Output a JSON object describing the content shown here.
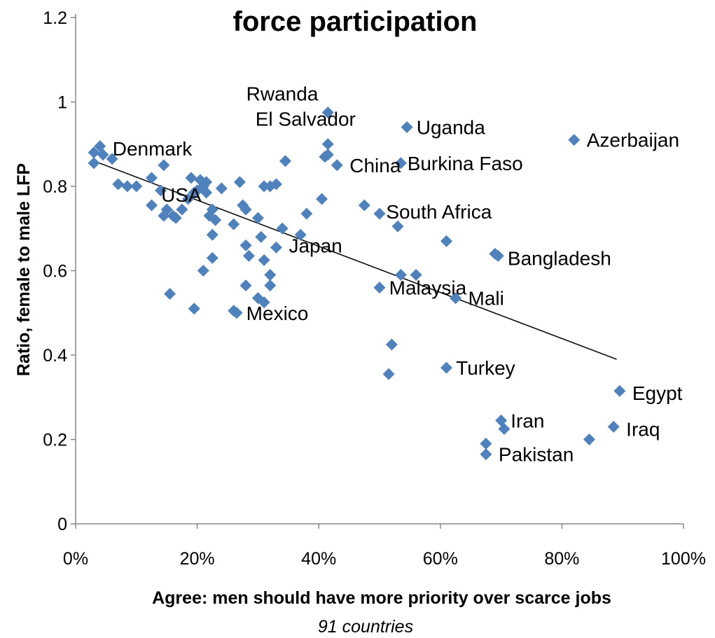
{
  "chart_data": {
    "type": "scatter",
    "title": "force participation",
    "xlabel": "Agree: men should have more priority over scarce jobs",
    "ylabel": "Ratio, female to male LFP",
    "subtitle": "91 countries",
    "xlim": [
      0,
      1
    ],
    "ylim": [
      0,
      1.2
    ],
    "x_ticks": [
      {
        "value": 0,
        "label": "0%"
      },
      {
        "value": 0.2,
        "label": "20%"
      },
      {
        "value": 0.4,
        "label": "40%"
      },
      {
        "value": 0.6,
        "label": "60%"
      },
      {
        "value": 0.8,
        "label": "80%"
      },
      {
        "value": 1.0,
        "label": "100%"
      }
    ],
    "y_ticks": [
      {
        "value": 0,
        "label": "0"
      },
      {
        "value": 0.2,
        "label": "0.2"
      },
      {
        "value": 0.4,
        "label": "0.4"
      },
      {
        "value": 0.6,
        "label": "0.6"
      },
      {
        "value": 0.8,
        "label": "0.8"
      },
      {
        "value": 1.0,
        "label": "1"
      },
      {
        "value": 1.2,
        "label": "1.2"
      }
    ],
    "grid": false,
    "marker": "diamond",
    "point_color": "#4F81BD",
    "trendline": {
      "x": [
        0.03,
        0.89
      ],
      "y": [
        0.86,
        0.39
      ],
      "color": "#000000"
    },
    "labeled_points": [
      {
        "label": "Rwanda",
        "x": 0.26,
        "y": 1.02
      },
      {
        "label": "El Salvador",
        "x": 0.275,
        "y": 0.96
      },
      {
        "label": "Uganda",
        "x": 0.54,
        "y": 0.94
      },
      {
        "label": "Azerbaijan",
        "x": 0.82,
        "y": 0.91
      },
      {
        "label": "Denmark",
        "x": 0.04,
        "y": 0.89
      },
      {
        "label": "China",
        "x": 0.43,
        "y": 0.85
      },
      {
        "label": "Burkina Faso",
        "x": 0.525,
        "y": 0.855
      },
      {
        "label": "USA",
        "x": 0.12,
        "y": 0.78
      },
      {
        "label": "South Africa",
        "x": 0.49,
        "y": 0.74
      },
      {
        "label": "Japan",
        "x": 0.33,
        "y": 0.66
      },
      {
        "label": "Bangladesh",
        "x": 0.69,
        "y": 0.63
      },
      {
        "label": "Malaysia",
        "x": 0.495,
        "y": 0.56
      },
      {
        "label": "Mali",
        "x": 0.625,
        "y": 0.535
      },
      {
        "label": "Mexico",
        "x": 0.26,
        "y": 0.5
      },
      {
        "label": "Turkey",
        "x": 0.605,
        "y": 0.37
      },
      {
        "label": "Egypt",
        "x": 0.895,
        "y": 0.31
      },
      {
        "label": "Iran",
        "x": 0.695,
        "y": 0.245
      },
      {
        "label": "Iraq",
        "x": 0.885,
        "y": 0.225
      },
      {
        "label": "Pakistan",
        "x": 0.675,
        "y": 0.165
      }
    ],
    "points": [
      {
        "x": 0.03,
        "y": 0.855
      },
      {
        "x": 0.03,
        "y": 0.88
      },
      {
        "x": 0.04,
        "y": 0.895
      },
      {
        "x": 0.045,
        "y": 0.875
      },
      {
        "x": 0.06,
        "y": 0.865
      },
      {
        "x": 0.07,
        "y": 0.805
      },
      {
        "x": 0.085,
        "y": 0.8
      },
      {
        "x": 0.1,
        "y": 0.8
      },
      {
        "x": 0.125,
        "y": 0.82
      },
      {
        "x": 0.125,
        "y": 0.755
      },
      {
        "x": 0.14,
        "y": 0.79
      },
      {
        "x": 0.145,
        "y": 0.85
      },
      {
        "x": 0.145,
        "y": 0.73
      },
      {
        "x": 0.15,
        "y": 0.745
      },
      {
        "x": 0.155,
        "y": 0.545
      },
      {
        "x": 0.16,
        "y": 0.73
      },
      {
        "x": 0.165,
        "y": 0.725
      },
      {
        "x": 0.175,
        "y": 0.745
      },
      {
        "x": 0.185,
        "y": 0.77
      },
      {
        "x": 0.19,
        "y": 0.82
      },
      {
        "x": 0.195,
        "y": 0.785
      },
      {
        "x": 0.195,
        "y": 0.51
      },
      {
        "x": 0.2,
        "y": 0.79
      },
      {
        "x": 0.205,
        "y": 0.815
      },
      {
        "x": 0.21,
        "y": 0.8
      },
      {
        "x": 0.21,
        "y": 0.6
      },
      {
        "x": 0.215,
        "y": 0.81
      },
      {
        "x": 0.215,
        "y": 0.785
      },
      {
        "x": 0.22,
        "y": 0.73
      },
      {
        "x": 0.225,
        "y": 0.745
      },
      {
        "x": 0.225,
        "y": 0.685
      },
      {
        "x": 0.225,
        "y": 0.63
      },
      {
        "x": 0.23,
        "y": 0.72
      },
      {
        "x": 0.24,
        "y": 0.795
      },
      {
        "x": 0.26,
        "y": 0.71
      },
      {
        "x": 0.26,
        "y": 0.505
      },
      {
        "x": 0.265,
        "y": 0.5
      },
      {
        "x": 0.27,
        "y": 0.81
      },
      {
        "x": 0.275,
        "y": 0.755
      },
      {
        "x": 0.28,
        "y": 0.745
      },
      {
        "x": 0.28,
        "y": 0.66
      },
      {
        "x": 0.28,
        "y": 0.565
      },
      {
        "x": 0.285,
        "y": 0.635
      },
      {
        "x": 0.3,
        "y": 0.725
      },
      {
        "x": 0.3,
        "y": 0.535
      },
      {
        "x": 0.305,
        "y": 0.68
      },
      {
        "x": 0.31,
        "y": 0.8
      },
      {
        "x": 0.31,
        "y": 0.625
      },
      {
        "x": 0.31,
        "y": 0.525
      },
      {
        "x": 0.32,
        "y": 0.8
      },
      {
        "x": 0.32,
        "y": 0.59
      },
      {
        "x": 0.32,
        "y": 0.565
      },
      {
        "x": 0.33,
        "y": 0.805
      },
      {
        "x": 0.33,
        "y": 0.655
      },
      {
        "x": 0.34,
        "y": 0.7
      },
      {
        "x": 0.345,
        "y": 0.86
      },
      {
        "x": 0.37,
        "y": 0.685
      },
      {
        "x": 0.38,
        "y": 0.735
      },
      {
        "x": 0.405,
        "y": 0.77
      },
      {
        "x": 0.41,
        "y": 0.87
      },
      {
        "x": 0.415,
        "y": 0.975
      },
      {
        "x": 0.415,
        "y": 0.9
      },
      {
        "x": 0.415,
        "y": 0.875
      },
      {
        "x": 0.43,
        "y": 0.85
      },
      {
        "x": 0.475,
        "y": 0.755
      },
      {
        "x": 0.5,
        "y": 0.56
      },
      {
        "x": 0.5,
        "y": 0.735
      },
      {
        "x": 0.515,
        "y": 0.355
      },
      {
        "x": 0.52,
        "y": 0.425
      },
      {
        "x": 0.53,
        "y": 0.705
      },
      {
        "x": 0.535,
        "y": 0.59
      },
      {
        "x": 0.535,
        "y": 0.855
      },
      {
        "x": 0.545,
        "y": 0.94
      },
      {
        "x": 0.56,
        "y": 0.59
      },
      {
        "x": 0.61,
        "y": 0.67
      },
      {
        "x": 0.61,
        "y": 0.37
      },
      {
        "x": 0.625,
        "y": 0.535
      },
      {
        "x": 0.675,
        "y": 0.19
      },
      {
        "x": 0.675,
        "y": 0.165
      },
      {
        "x": 0.69,
        "y": 0.64
      },
      {
        "x": 0.695,
        "y": 0.635
      },
      {
        "x": 0.7,
        "y": 0.245
      },
      {
        "x": 0.705,
        "y": 0.225
      },
      {
        "x": 0.82,
        "y": 0.91
      },
      {
        "x": 0.845,
        "y": 0.2
      },
      {
        "x": 0.885,
        "y": 0.23
      },
      {
        "x": 0.895,
        "y": 0.315
      }
    ]
  }
}
